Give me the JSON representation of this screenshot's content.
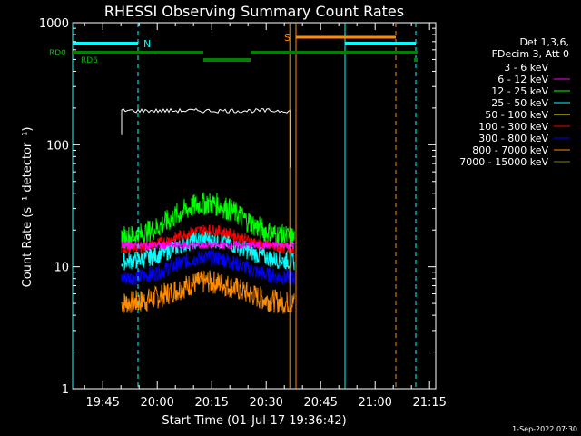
{
  "chart_data": {
    "type": "line",
    "title": "RHESSI Observing Summary Count Rates",
    "xlabel": "Start Time (01-Jul-17 19:36:42)",
    "ylabel": "Count Rate (s⁻¹ detector⁻¹)",
    "yscale": "log",
    "ylim": [
      1,
      1000
    ],
    "xlim_minutes": [
      0,
      100
    ],
    "x_ticks": [
      "19:45",
      "20:00",
      "20:15",
      "20:30",
      "20:45",
      "21:00",
      "21:15"
    ],
    "y_ticks": [
      "1",
      "10",
      "100",
      "1000"
    ],
    "legend": {
      "header": [
        "Det 1,3,6,",
        "FDecim 3, Att 0"
      ],
      "placement": "right"
    },
    "series": [
      {
        "name": "3 - 6 keV",
        "color": "#000000",
        "x_start_min": 13.5,
        "x_end_min": 60,
        "level": 190
      },
      {
        "name": "6 - 12 keV",
        "color": "#ff00ff",
        "x_start_min": 13.5,
        "x_end_min": 61,
        "level": 15
      },
      {
        "name": "12 - 25 keV",
        "color": "#00ff00",
        "x_start_min": 13.5,
        "x_end_min": 61,
        "level": 17,
        "peak": 33
      },
      {
        "name": "25 - 50 keV",
        "color": "#00ffff",
        "x_start_min": 13.5,
        "x_end_min": 61,
        "level": 11,
        "peak": 17
      },
      {
        "name": "50 - 100 keV",
        "color": "#ffff00",
        "x_start_min": 13.5,
        "x_end_min": 61,
        "level": 0
      },
      {
        "name": "100 - 300 keV",
        "color": "#ff0000",
        "x_start_min": 13.5,
        "x_end_min": 61,
        "level": 14,
        "peak": 20
      },
      {
        "name": "300 - 800 keV",
        "color": "#0000ff",
        "x_start_min": 13.5,
        "x_end_min": 61,
        "level": 8,
        "peak": 12
      },
      {
        "name": "800 - 7000 keV",
        "color": "#ff8c00",
        "x_start_min": 13.5,
        "x_end_min": 61,
        "level": 5,
        "peak": 7.5
      },
      {
        "name": "7000 - 15000 keV",
        "color": "#808000",
        "x_start_min": 13.5,
        "x_end_min": 61,
        "level": 0
      }
    ],
    "annotations": {
      "night_label": "N",
      "saa_label": "S",
      "rd0_label": "RD0",
      "rd6_label": "RD6"
    },
    "night_intervals_min": [
      [
        0,
        18
      ],
      [
        75,
        94.5
      ]
    ],
    "saa_intervals_min": [
      [
        61.5,
        89
      ]
    ],
    "vertical_lines_min": {
      "cyan_solid": [
        0,
        75
      ],
      "cyan_dashed": [
        18,
        94.5
      ],
      "orange_solid": [
        59.8,
        61.5
      ],
      "orange_dashed": [
        89
      ]
    },
    "rd0_segments_min": [
      [
        0,
        36
      ],
      [
        49,
        94.5
      ],
      [
        94,
        95
      ]
    ],
    "rd6_segments_min": [
      [
        36,
        49
      ],
      [
        94,
        95
      ]
    ]
  },
  "footer": {
    "timestamp": "1-Sep-2022 07:30"
  }
}
